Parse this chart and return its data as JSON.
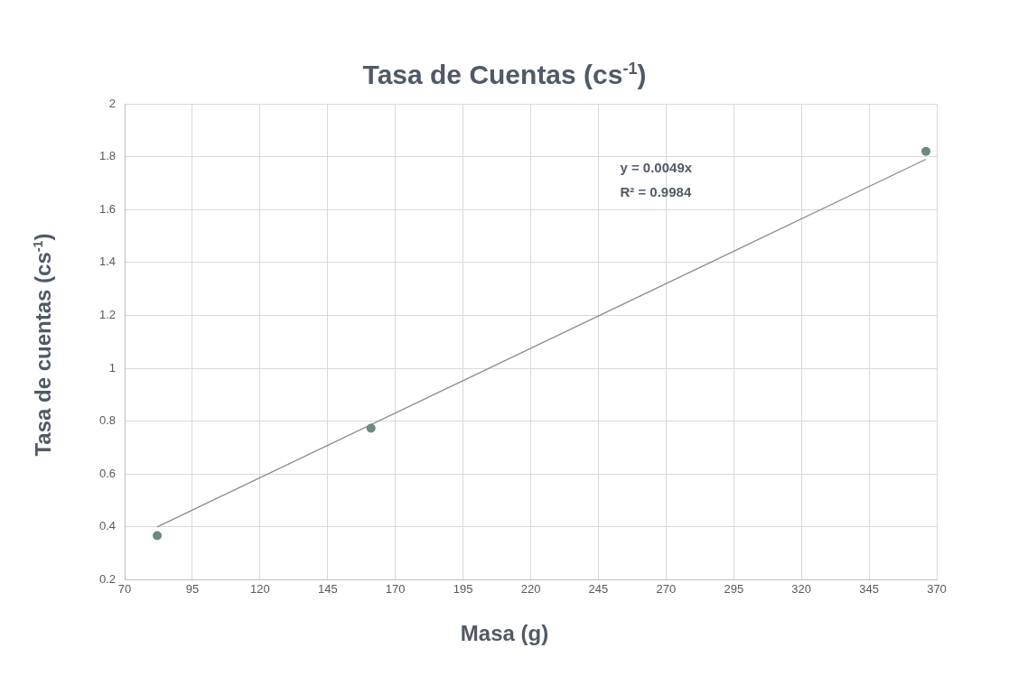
{
  "chart_data": {
    "type": "scatter",
    "title": "Tasa de Cuentas (cs$^{-1}$)",
    "xlabel": "Masa  (g)",
    "ylabel": "Tasa de cuentas (cs$^{-1}$)",
    "x": [
      82,
      161,
      366
    ],
    "series": [
      {
        "color": "#6b8a84",
        "marker": "circle",
        "values": [
          0.367,
          0.773,
          1.82
        ]
      },
      {
        "type": "line",
        "color": "#8c8c8c",
        "marker": "none",
        "x": [
          82,
          366
        ],
        "values": [
          0.4,
          1.79
        ]
      }
    ],
    "annotations": [
      "y = 0.0049x",
      "R² = 0.9984"
    ],
    "xlim": [
      70,
      370
    ],
    "xticks": [
      70,
      95,
      120,
      145,
      170,
      195,
      220,
      245,
      270,
      295,
      320,
      345,
      370
    ],
    "ylim": [
      0.2,
      2
    ],
    "yticks": [
      0.2,
      0.4,
      0.6,
      0.8,
      1,
      1.2,
      1.4,
      1.6,
      1.8,
      2
    ],
    "grid": true
  }
}
